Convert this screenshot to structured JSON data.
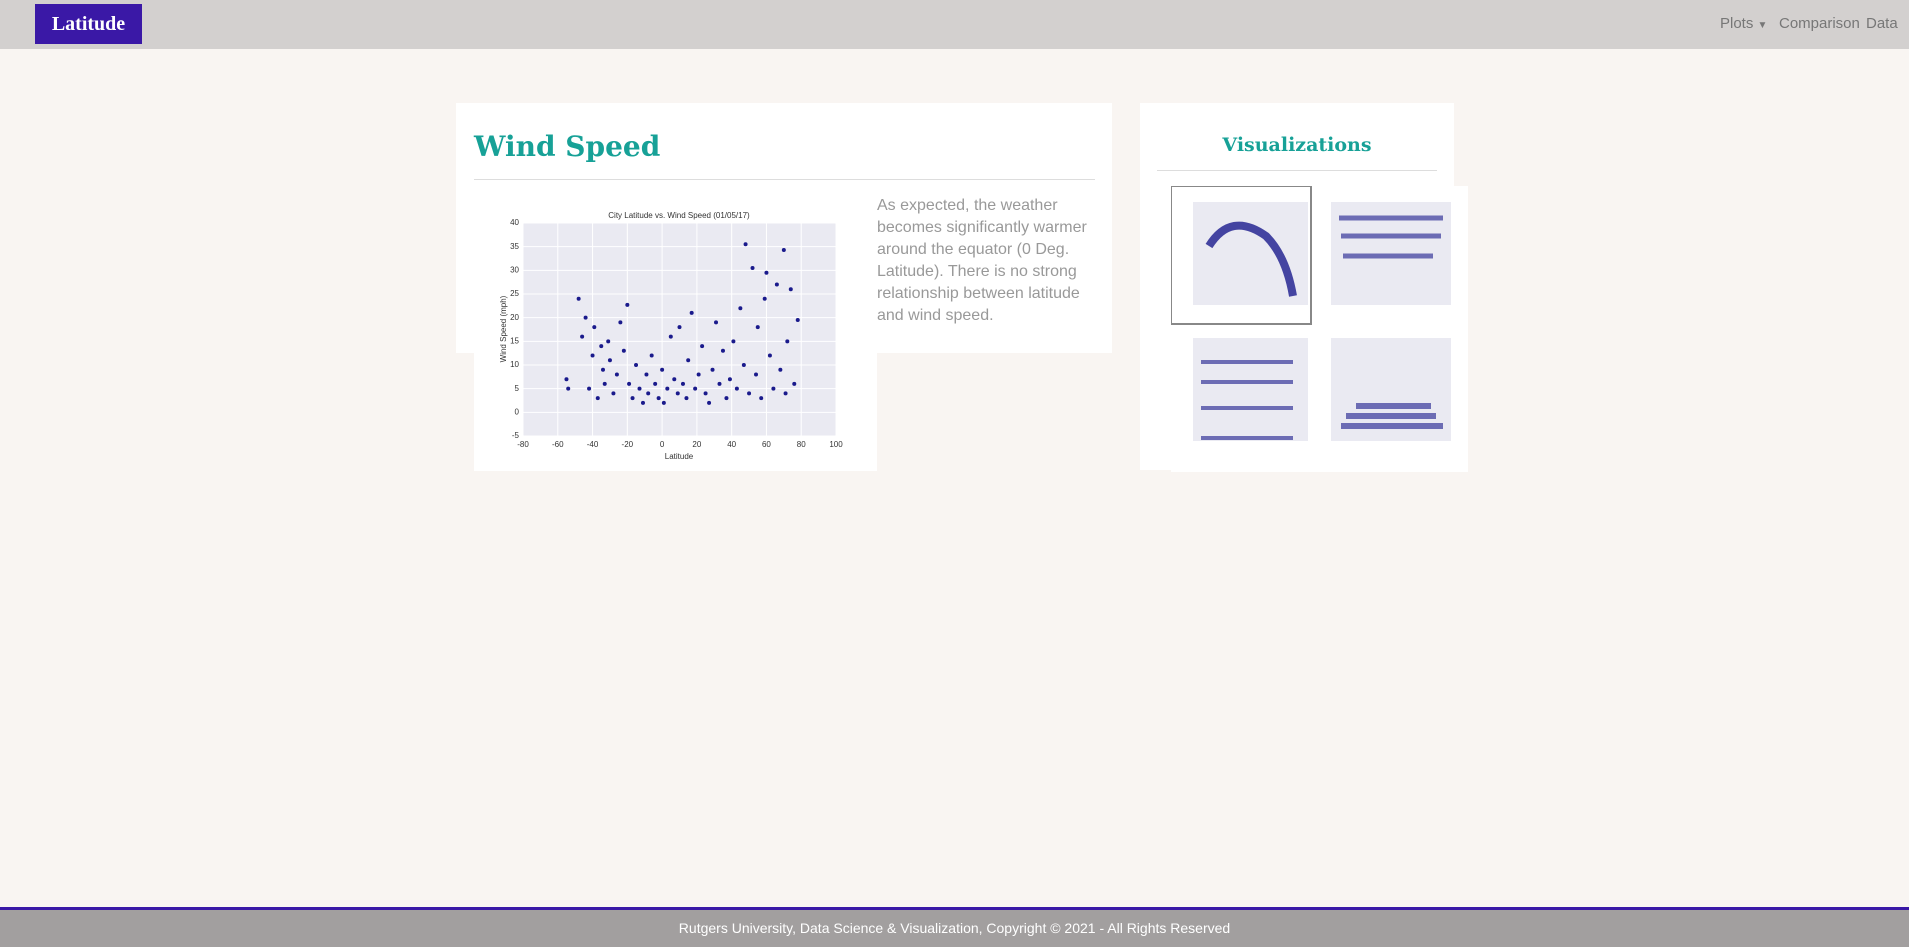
{
  "navbar": {
    "brand": "Latitude",
    "links": [
      "Plots",
      "Comparison",
      "Data"
    ]
  },
  "main": {
    "title": "Wind Speed",
    "description": "As expected, the weather becomes significantly warmer around the equator (0 Deg. Latitude). There is no strong relationship between latitude and wind speed.",
    "chart_data": {
      "type": "scatter",
      "title": "City Latitude vs. Wind Speed (01/05/17)",
      "x_label": "Latitude",
      "y_label": "Wind Speed (mph)",
      "color": "#1a1a8c",
      "grid": true,
      "xlim": [
        -80,
        100
      ],
      "ylim": [
        -5,
        40
      ],
      "xticks": [
        -80,
        -60,
        -40,
        -20,
        0,
        20,
        40,
        60,
        80,
        100
      ],
      "yticks": [
        -5,
        0,
        5,
        10,
        15,
        20,
        25,
        30,
        35,
        40
      ],
      "x": [
        -55,
        -54,
        -48,
        -46,
        -44,
        -42,
        -40,
        -39,
        -37,
        -35,
        -34,
        -33,
        -31,
        -30,
        -28,
        -26,
        -24,
        -22,
        -20,
        -19,
        -17,
        -15,
        -13,
        -11,
        -9,
        -8,
        -6,
        -4,
        -2,
        0,
        1,
        3,
        5,
        7,
        9,
        10,
        12,
        14,
        15,
        17,
        19,
        21,
        23,
        25,
        27,
        29,
        31,
        33,
        35,
        37,
        39,
        41,
        43,
        45,
        47,
        48,
        50,
        52,
        54,
        55,
        57,
        59,
        60,
        62,
        64,
        66,
        68,
        70,
        71,
        72,
        74,
        76,
        78
      ],
      "y": [
        7,
        5,
        24,
        16,
        20,
        5,
        12,
        18,
        3,
        14,
        9,
        6,
        15,
        11,
        4,
        8,
        19,
        13,
        22.7,
        6,
        3,
        10,
        5,
        2,
        8,
        4,
        12,
        6,
        3,
        9,
        2,
        5,
        16,
        7,
        4,
        18,
        6,
        3,
        11,
        21,
        5,
        8,
        14,
        4,
        2,
        9,
        19,
        6,
        13,
        3,
        7,
        15,
        5,
        22,
        10,
        35.5,
        4,
        30.5,
        8,
        18,
        3,
        24,
        29.5,
        12,
        5,
        27,
        9,
        34.3,
        4,
        15,
        26,
        6,
        19.5
      ]
    }
  },
  "sidebar": {
    "title": "Visualizations"
  },
  "footer": {
    "text": "Rutgers University, Data Science & Visualization, Copyright © 2021 - All Rights Reserved"
  }
}
